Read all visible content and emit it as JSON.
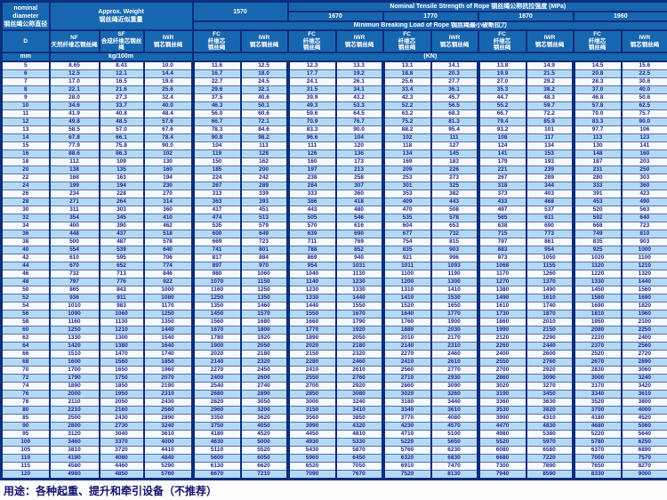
{
  "table": {
    "header": {
      "nominal_diameter": "nominal\ndiameter\n钢丝绳公称直径",
      "approx_weight": "Approx. Weight\n钢丝绳近似重量",
      "tensile_title": "Nominal Tensile Strength of Rope 钢丝绳公称抗拉强度 (MPa)",
      "breaking_title": "Minimun Breaking Load of Rope 钢丝绳最小破断拉力",
      "strengths": [
        "1570",
        "1670",
        "1770",
        "1870",
        "1960"
      ],
      "d_label": "D",
      "mm_label": "mm",
      "kg_label": "kg/100m",
      "kn_label": "(KN)",
      "nf_label": "NF\n天然纤维芯钢丝绳",
      "sf_label": "SF\n合成纤维芯钢丝绳",
      "iwr_label": "IWR\n钢芯钢丝绳",
      "fc_core_label": "FC\n纤维芯\n钢丝绳",
      "iwr_core_label": "IWR\n钢芯钢丝绳"
    },
    "rows": [
      [
        "5",
        "8.65",
        "8.43",
        "10.0",
        "11.6",
        "12.5",
        "12.3",
        "13.3",
        "13.1",
        "14.1",
        "13.8",
        "14.9",
        "14.5",
        "15.6"
      ],
      [
        "6",
        "12.5",
        "12.1",
        "14.4",
        "16.7",
        "18.0",
        "17.7",
        "19.2",
        "18.8",
        "20.3",
        "19.9",
        "21.5",
        "20.8",
        "22.5"
      ],
      [
        "7",
        "17.0",
        "16.5",
        "19.6",
        "22.7",
        "24.5",
        "24.1",
        "26.1",
        "25.6",
        "27.7",
        "27.0",
        "29.2",
        "28.3",
        "30.6"
      ],
      [
        "8",
        "22.1",
        "21.6",
        "25.6",
        "29.6",
        "32.1",
        "31.5",
        "34.1",
        "33.4",
        "36.1",
        "35.3",
        "38.2",
        "37.0",
        "40.0"
      ],
      [
        "9",
        "28.0",
        "27.3",
        "32.4",
        "37.5",
        "40.6",
        "39.9",
        "43.2",
        "42.3",
        "45.7",
        "44.7",
        "48.3",
        "46.8",
        "50.6"
      ],
      [
        "10",
        "34.6",
        "33.7",
        "40.0",
        "46.3",
        "50.1",
        "49.3",
        "53.3",
        "52.2",
        "56.5",
        "55.2",
        "59.7",
        "57.8",
        "62.5"
      ],
      [
        "11",
        "41.9",
        "40.8",
        "48.4",
        "56.0",
        "60.6",
        "59.6",
        "64.5",
        "63.2",
        "68.3",
        "66.7",
        "72.2",
        "70.0",
        "75.7"
      ],
      [
        "12",
        "49.8",
        "48.5",
        "57.6",
        "66.7",
        "72.1",
        "70.9",
        "76.7",
        "75.2",
        "81.3",
        "79.4",
        "85.9",
        "83.3",
        "90.0"
      ],
      [
        "13",
        "58.5",
        "57.0",
        "67.6",
        "78.3",
        "84.6",
        "83.3",
        "90.0",
        "88.2",
        "95.4",
        "93.2",
        "101",
        "97.7",
        "106"
      ],
      [
        "14",
        "67.8",
        "66.1",
        "78.4",
        "90.8",
        "98.2",
        "96.6",
        "104",
        "102",
        "111",
        "108",
        "117",
        "113",
        "123"
      ],
      [
        "15",
        "77.9",
        "75.8",
        "90.0",
        "104",
        "113",
        "111",
        "120",
        "118",
        "127",
        "124",
        "134",
        "130",
        "141"
      ],
      [
        "16",
        "88.6",
        "86.3",
        "102",
        "119",
        "128",
        "126",
        "136",
        "134",
        "145",
        "141",
        "153",
        "148",
        "160"
      ],
      [
        "18",
        "112",
        "109",
        "130",
        "150",
        "162",
        "160",
        "173",
        "169",
        "183",
        "179",
        "193",
        "187",
        "203"
      ],
      [
        "20",
        "138",
        "135",
        "160",
        "185",
        "200",
        "197",
        "213",
        "209",
        "226",
        "221",
        "239",
        "231",
        "250"
      ],
      [
        "22",
        "168",
        "163",
        "194",
        "224",
        "242",
        "238",
        "258",
        "253",
        "273",
        "267",
        "289",
        "280",
        "303"
      ],
      [
        "24",
        "199",
        "194",
        "230",
        "267",
        "289",
        "284",
        "307",
        "301",
        "325",
        "318",
        "344",
        "333",
        "360"
      ],
      [
        "26",
        "234",
        "228",
        "270",
        "313",
        "339",
        "333",
        "360",
        "353",
        "382",
        "373",
        "403",
        "391",
        "423"
      ],
      [
        "28",
        "271",
        "264",
        "314",
        "363",
        "393",
        "386",
        "418",
        "409",
        "443",
        "433",
        "468",
        "453",
        "490"
      ],
      [
        "30",
        "311",
        "303",
        "360",
        "417",
        "451",
        "443",
        "480",
        "470",
        "508",
        "497",
        "537",
        "520",
        "563"
      ],
      [
        "32",
        "354",
        "345",
        "410",
        "474",
        "513",
        "505",
        "546",
        "535",
        "578",
        "565",
        "611",
        "592",
        "640"
      ],
      [
        "34",
        "400",
        "390",
        "462",
        "535",
        "579",
        "570",
        "616",
        "604",
        "653",
        "638",
        "690",
        "668",
        "723"
      ],
      [
        "36",
        "448",
        "437",
        "518",
        "600",
        "649",
        "639",
        "690",
        "677",
        "732",
        "715",
        "773",
        "749",
        "810"
      ],
      [
        "38",
        "500",
        "487",
        "578",
        "669",
        "723",
        "711",
        "769",
        "754",
        "815",
        "797",
        "861",
        "835",
        "903"
      ],
      [
        "40",
        "554",
        "539",
        "640",
        "741",
        "801",
        "788",
        "852",
        "835",
        "903",
        "883",
        "954",
        "925",
        "1000"
      ],
      [
        "42",
        "610",
        "595",
        "706",
        "817",
        "884",
        "869",
        "940",
        "921",
        "996",
        "973",
        "1050",
        "1020",
        "1100"
      ],
      [
        "44",
        "670",
        "652",
        "774",
        "897",
        "970",
        "954",
        "1031",
        "1011",
        "1093",
        "1068",
        "1155",
        "1120",
        "1210"
      ],
      [
        "46",
        "732",
        "713",
        "846",
        "980",
        "1060",
        "1040",
        "1130",
        "1100",
        "1190",
        "1170",
        "1260",
        "1220",
        "1320"
      ],
      [
        "48",
        "797",
        "776",
        "922",
        "1070",
        "1150",
        "1140",
        "1230",
        "1200",
        "1300",
        "1270",
        "1370",
        "1330",
        "1440"
      ],
      [
        "50",
        "865",
        "843",
        "1000",
        "1160",
        "1250",
        "1230",
        "1330",
        "1310",
        "1410",
        "1380",
        "1490",
        "1450",
        "1560"
      ],
      [
        "52",
        "936",
        "911",
        "1080",
        "1250",
        "1350",
        "1330",
        "1440",
        "1410",
        "1530",
        "1490",
        "1610",
        "1560",
        "1690"
      ],
      [
        "54",
        "1010",
        "983",
        "1170",
        "1350",
        "1460",
        "1440",
        "1550",
        "1520",
        "1650",
        "1610",
        "1740",
        "1690",
        "1820"
      ],
      [
        "56",
        "1090",
        "1060",
        "1250",
        "1450",
        "1570",
        "1550",
        "1670",
        "1640",
        "1770",
        "1730",
        "1870",
        "1810",
        "1960"
      ],
      [
        "58",
        "1160",
        "1130",
        "1350",
        "1560",
        "1680",
        "1660",
        "1790",
        "1760",
        "1900",
        "1860",
        "2010",
        "1950",
        "2100"
      ],
      [
        "60",
        "1250",
        "1210",
        "1440",
        "1670",
        "1800",
        "1770",
        "1920",
        "1880",
        "2030",
        "1990",
        "2150",
        "2080",
        "2250"
      ],
      [
        "62",
        "1330",
        "1300",
        "1540",
        "1780",
        "1920",
        "1890",
        "2050",
        "2010",
        "2170",
        "2120",
        "2290",
        "2220",
        "2400"
      ],
      [
        "64",
        "1420",
        "1380",
        "1640",
        "1900",
        "2050",
        "2020",
        "2180",
        "2140",
        "2310",
        "2260",
        "2440",
        "2370",
        "2560"
      ],
      [
        "66",
        "1510",
        "1470",
        "1740",
        "2020",
        "2180",
        "2150",
        "2320",
        "2270",
        "2460",
        "2400",
        "2600",
        "2520",
        "2720"
      ],
      [
        "68",
        "1600",
        "1560",
        "1850",
        "2140",
        "2320",
        "2280",
        "2460",
        "2410",
        "2610",
        "2550",
        "2760",
        "2670",
        "2890"
      ],
      [
        "70",
        "1700",
        "1650",
        "1960",
        "2270",
        "2450",
        "2410",
        "2610",
        "2560",
        "2770",
        "2700",
        "2920",
        "2830",
        "3060"
      ],
      [
        "72",
        "1790",
        "1750",
        "2070",
        "2400",
        "2600",
        "2550",
        "2760",
        "2710",
        "2930",
        "2860",
        "3090",
        "3000",
        "3240"
      ],
      [
        "74",
        "1890",
        "1850",
        "2190",
        "2540",
        "2740",
        "2700",
        "2920",
        "2860",
        "3090",
        "3020",
        "3270",
        "3170",
        "3420"
      ],
      [
        "76",
        "2000",
        "1950",
        "2310",
        "2680",
        "2890",
        "2850",
        "3080",
        "3020",
        "3260",
        "3190",
        "3450",
        "3340",
        "3610"
      ],
      [
        "78",
        "2110",
        "2050",
        "2430",
        "2820",
        "3050",
        "3000",
        "3240",
        "3180",
        "3440",
        "3360",
        "3630",
        "3520",
        "3800"
      ],
      [
        "80",
        "2210",
        "2160",
        "2560",
        "2960",
        "3200",
        "3150",
        "3410",
        "3340",
        "3610",
        "3530",
        "3820",
        "3700",
        "4000"
      ],
      [
        "85",
        "2500",
        "2430",
        "2890",
        "3350",
        "3620",
        "3560",
        "3850",
        "3770",
        "4080",
        "3990",
        "4310",
        "4180",
        "4520"
      ],
      [
        "90",
        "2800",
        "2730",
        "3240",
        "3750",
        "4050",
        "3990",
        "4320",
        "4230",
        "4570",
        "4470",
        "4830",
        "4680",
        "5060"
      ],
      [
        "95",
        "3120",
        "3040",
        "3610",
        "4180",
        "4520",
        "4450",
        "4810",
        "4710",
        "5100",
        "4980",
        "5380",
        "5220",
        "5640"
      ],
      [
        "100",
        "3460",
        "3370",
        "4000",
        "4630",
        "5000",
        "4930",
        "5330",
        "5220",
        "5650",
        "5520",
        "5970",
        "5780",
        "6250"
      ],
      [
        "105",
        "3810",
        "3720",
        "4410",
        "5110",
        "5520",
        "5430",
        "5870",
        "5760",
        "6230",
        "6080",
        "6580",
        "6370",
        "6890"
      ],
      [
        "110",
        "4190",
        "4080",
        "4840",
        "5600",
        "6050",
        "5960",
        "6450",
        "6320",
        "6830",
        "6680",
        "7220",
        "7000",
        "7570"
      ],
      [
        "115",
        "4580",
        "4460",
        "5290",
        "6130",
        "6620",
        "6520",
        "7050",
        "6910",
        "7470",
        "7300",
        "7890",
        "7650",
        "8270"
      ],
      [
        "120",
        "4980",
        "4850",
        "5760",
        "6670",
        "7210",
        "7090",
        "7670",
        "7520",
        "8130",
        "7940",
        "8590",
        "8330",
        "9000"
      ]
    ]
  },
  "note": "用途：各种起重、提升和牵引设备（不推荐）",
  "colors": {
    "header_bg": "#1767b0",
    "border": "#0c2d7c",
    "row_light": "#f5fafe",
    "row_blue": "#b4d9f3",
    "cell_text": "#1d1d90"
  }
}
